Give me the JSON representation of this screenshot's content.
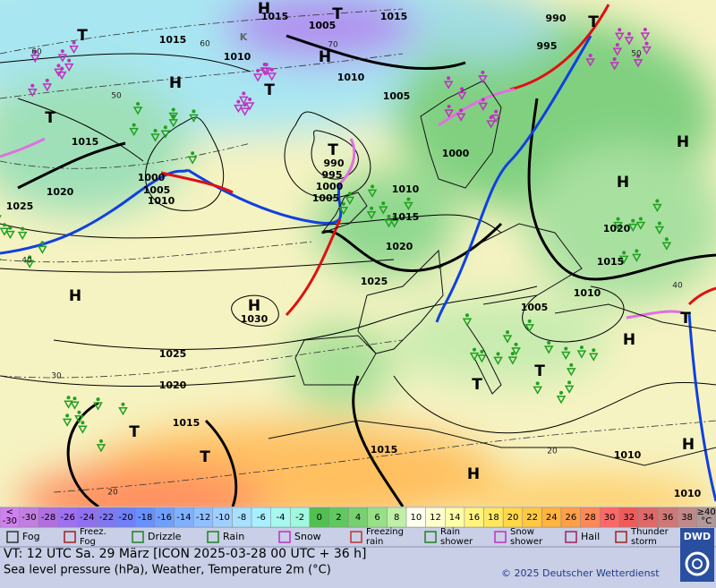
{
  "map": {
    "labels": [
      "H",
      "1015",
      "T",
      "1005",
      "1015",
      "T",
      "1015",
      "K",
      "1010",
      "H",
      "1010",
      "H",
      "T",
      "1005",
      "T",
      "1015",
      "T",
      "990",
      "995",
      "1000",
      "H",
      "1000",
      "1005",
      "1010",
      "1000",
      "1005",
      "1010",
      "H",
      "1020",
      "1025",
      "1015",
      "1020",
      "1020",
      "1015",
      "1025",
      "H",
      "H",
      "1030",
      "1010",
      "1005",
      "H",
      "T",
      "1025",
      "1020",
      "1015",
      "T",
      "T",
      "1015",
      "1010",
      "H",
      "H",
      "1010",
      "T",
      "T",
      "990",
      "995",
      "T"
    ],
    "isotherm_labels": [
      "60",
      "70",
      "50",
      "40",
      "30",
      "20",
      "60",
      "40",
      "50",
      "20"
    ]
  },
  "legend": {
    "below": [
      "<",
      "-30"
    ],
    "scale": [
      -30,
      -28,
      -26,
      -24,
      -22,
      -20,
      -18,
      -16,
      -14,
      -12,
      -10,
      -8,
      -6,
      -4,
      -2,
      0,
      2,
      4,
      6,
      8,
      10,
      12,
      14,
      16,
      18,
      20,
      22,
      24,
      26,
      28,
      30,
      32,
      34,
      36,
      38
    ],
    "above": [
      "≥40",
      "°C"
    ],
    "symbols": [
      [
        "Fog"
      ],
      [
        "Freez.",
        "Fog"
      ],
      [
        "Drizzle"
      ],
      [
        "Rain"
      ],
      [
        "Snow"
      ],
      [
        "Freezing",
        "rain"
      ],
      [
        "Rain",
        "shower"
      ],
      [
        "Snow",
        "shower"
      ],
      [
        "Hail"
      ],
      [
        "Thunder",
        "storm"
      ]
    ]
  },
  "footer": {
    "valid_time": "VT: 12 UTC Sa.  29 März [ICON 2025-03-28  00 UTC + 36 h]",
    "description": "Sea level pressure (hPa), Weather, Temperature 2m (°C)",
    "copyright": "© 2025 Deutscher Wetterdienst",
    "logo": "DWD"
  }
}
